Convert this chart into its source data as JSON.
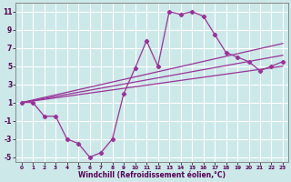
{
  "background_color": "#cce8e8",
  "grid_color": "#b0d8d8",
  "line_color": "#993399",
  "xlim": [
    -0.5,
    23.5
  ],
  "ylim": [
    -5.5,
    12.0
  ],
  "xticks": [
    0,
    1,
    2,
    3,
    4,
    5,
    6,
    7,
    8,
    9,
    10,
    11,
    12,
    13,
    14,
    15,
    16,
    17,
    18,
    19,
    20,
    21,
    22,
    23
  ],
  "yticks": [
    -5,
    -3,
    -1,
    1,
    3,
    5,
    7,
    9,
    11
  ],
  "curve_x": [
    0,
    1,
    2,
    3,
    4,
    5,
    6,
    7,
    8,
    9,
    10,
    11,
    12,
    13,
    14,
    15,
    16,
    17,
    18,
    19,
    20,
    21,
    22,
    23
  ],
  "curve_y": [
    1.0,
    1.0,
    -0.5,
    -0.5,
    -3.0,
    -3.5,
    -5.0,
    -4.5,
    -3.0,
    2.0,
    4.8,
    7.8,
    5.0,
    11.0,
    10.7,
    11.0,
    10.5,
    8.5,
    6.5,
    6.0,
    5.5,
    4.5,
    5.0,
    5.5
  ],
  "straight_lines": [
    {
      "x": [
        0,
        23
      ],
      "y": [
        1.0,
        7.5
      ]
    },
    {
      "x": [
        0,
        23
      ],
      "y": [
        1.0,
        6.2
      ]
    },
    {
      "x": [
        0,
        23
      ],
      "y": [
        1.0,
        5.0
      ]
    }
  ],
  "xlabel": "Windchill (Refroidissement éolien,°C)"
}
